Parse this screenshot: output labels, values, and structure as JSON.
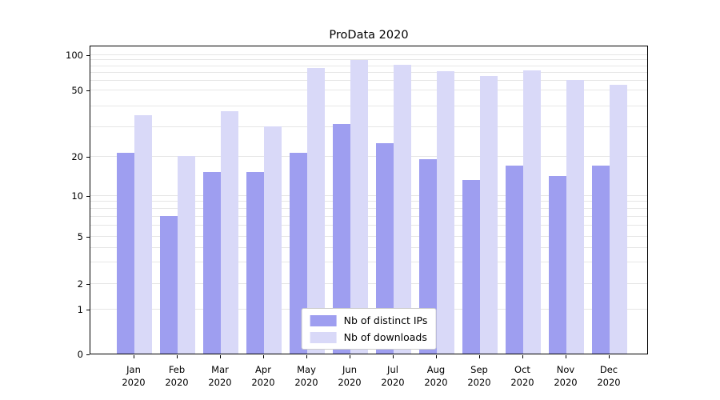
{
  "chart_data": {
    "type": "bar",
    "title": "ProData 2020",
    "scale": "symlog",
    "grid": true,
    "legend_position": "lower center",
    "categories": [
      "Jan",
      "Feb",
      "Mar",
      "Apr",
      "May",
      "Jun",
      "Jul",
      "Aug",
      "Sep",
      "Oct",
      "Nov",
      "Dec"
    ],
    "x_year": "2020",
    "yticks": [
      0,
      1,
      2,
      5,
      10,
      20,
      50,
      100
    ],
    "ylim": [
      0,
      110
    ],
    "series": [
      {
        "name": "Nb of distinct IPs",
        "color": "#9e9ef0",
        "values": [
          21,
          7,
          15,
          15,
          21,
          31,
          24,
          19,
          13,
          17,
          14,
          17
        ]
      },
      {
        "name": "Nb of downloads",
        "color": "#d9d9f8",
        "values": [
          35,
          20,
          37,
          30,
          77,
          90,
          82,
          72,
          65,
          73,
          60,
          55
        ]
      }
    ]
  }
}
